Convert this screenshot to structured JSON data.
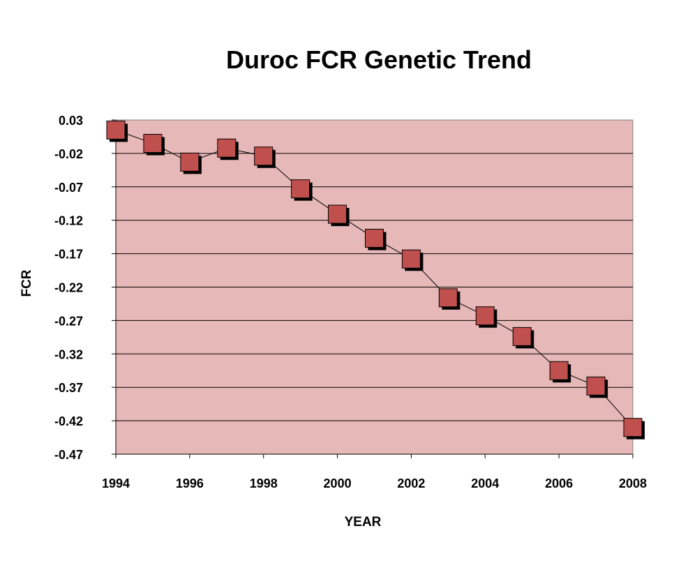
{
  "chart_data": {
    "type": "line",
    "title": "Duroc FCR Genetic Trend",
    "xlabel": "YEAR",
    "ylabel": "FCR",
    "x": [
      1994,
      1995,
      1996,
      1997,
      1998,
      1999,
      2000,
      2001,
      2002,
      2003,
      2004,
      2005,
      2006,
      2007,
      2008
    ],
    "series": [
      {
        "values": [
          0.015,
          -0.005,
          -0.033,
          -0.012,
          -0.024,
          -0.073,
          -0.111,
          -0.147,
          -0.178,
          -0.236,
          -0.263,
          -0.294,
          -0.345,
          -0.368,
          -0.43
        ]
      }
    ],
    "xlim": [
      1994,
      2008
    ],
    "ylim": [
      -0.47,
      0.03
    ],
    "x_ticks": [
      "1994",
      "1996",
      "1998",
      "2000",
      "2002",
      "2004",
      "2006",
      "2008"
    ],
    "y_ticks": [
      "0.03",
      "-0.02",
      "-0.07",
      "-0.12",
      "-0.17",
      "-0.22",
      "-0.27",
      "-0.32",
      "-0.37",
      "-0.42",
      "-0.47"
    ],
    "grid": true,
    "legend": "none",
    "colors": {
      "plot_background": "#e6b8b7",
      "marker_fill": "#c0504d",
      "marker_shadow": "#000000",
      "line": "#000000",
      "grid": "#000000"
    }
  }
}
